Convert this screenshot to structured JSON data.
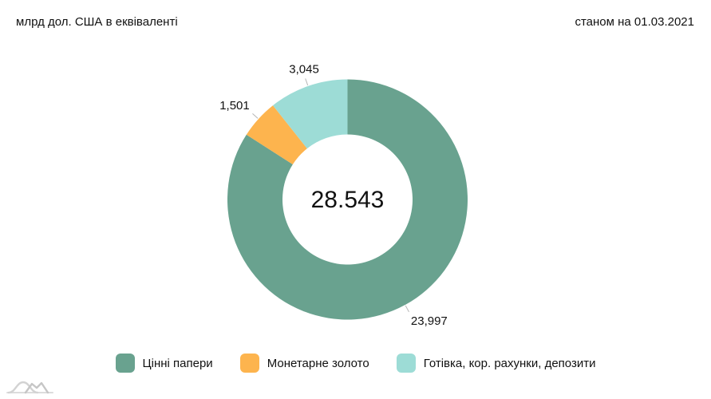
{
  "chart_data": {
    "type": "pie",
    "subtype": "donut",
    "title": "млрд дол. США в еквіваленті",
    "as_of": "станом на 01.03.2021",
    "center_total": "28.543",
    "start_angle_deg": 0,
    "direction": "clockwise",
    "legend_position": "bottom",
    "grid": false,
    "series": [
      {
        "label": "Цінні папери",
        "value": 23.997,
        "value_label": "23,997",
        "color": "#69A28F"
      },
      {
        "label": "Монетарне золото",
        "value": 1.501,
        "value_label": "1,501",
        "color": "#FDB44E"
      },
      {
        "label": "Готівка, кор. рахунки, депозити",
        "value": 3.045,
        "value_label": "3,045",
        "color": "#9DDCD6"
      }
    ]
  }
}
